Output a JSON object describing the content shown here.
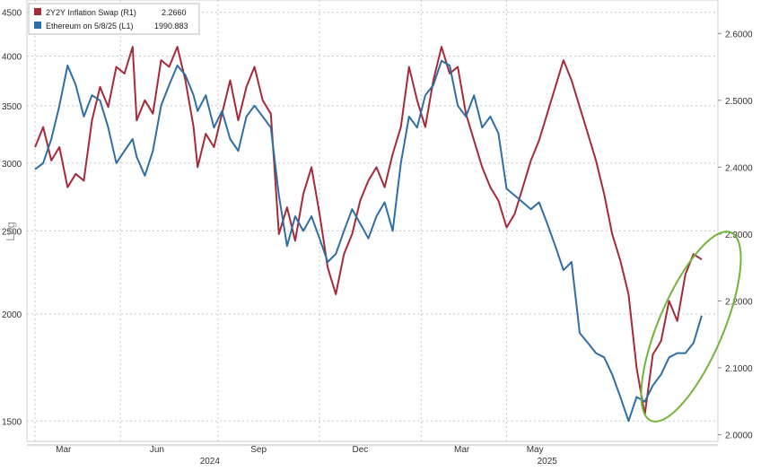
{
  "chart_data": {
    "type": "line",
    "legend": {
      "placement": "top-left",
      "entries": [
        {
          "label": "2Y2Y Inflation Swap (R1)",
          "last": "2.2660",
          "color": "#a52a3a"
        },
        {
          "label": "Ethereum on 5/8/25 (L1)",
          "last": "1990.883",
          "color": "#2f6ea6"
        }
      ]
    },
    "ylabel_left": "Log",
    "left_axis": {
      "scale": "log",
      "ticks": [
        "1500",
        "2000",
        "2500",
        "3000",
        "3500",
        "4000",
        "4500"
      ],
      "range": [
        1420,
        4650
      ]
    },
    "right_axis": {
      "scale": "linear",
      "ticks": [
        "2.0000",
        "2.1000",
        "2.2000",
        "2.3000",
        "2.4000",
        "2.5000",
        "2.6000"
      ],
      "range": [
        1.99,
        2.65
      ]
    },
    "x_ticks": [
      "Mar",
      "Jun",
      "Sep",
      "Dec",
      "Mar",
      "May"
    ],
    "x_years": [
      "2024",
      "2025"
    ],
    "grid": true,
    "annotation": "green ellipse highlighting recent rebound",
    "series": [
      {
        "name": "2Y2Y Inflation Swap (R1)",
        "axis": "right",
        "color": "#a52a3a",
        "points": [
          [
            2024.12,
            2.43
          ],
          [
            2024.14,
            2.46
          ],
          [
            2024.16,
            2.41
          ],
          [
            2024.18,
            2.43
          ],
          [
            2024.2,
            2.37
          ],
          [
            2024.22,
            2.39
          ],
          [
            2024.24,
            2.38
          ],
          [
            2024.26,
            2.47
          ],
          [
            2024.28,
            2.52
          ],
          [
            2024.3,
            2.49
          ],
          [
            2024.32,
            2.55
          ],
          [
            2024.34,
            2.54
          ],
          [
            2024.36,
            2.58
          ],
          [
            2024.37,
            2.47
          ],
          [
            2024.39,
            2.5
          ],
          [
            2024.41,
            2.48
          ],
          [
            2024.43,
            2.56
          ],
          [
            2024.45,
            2.55
          ],
          [
            2024.47,
            2.58
          ],
          [
            2024.49,
            2.53
          ],
          [
            2024.51,
            2.46
          ],
          [
            2024.52,
            2.4
          ],
          [
            2024.54,
            2.45
          ],
          [
            2024.56,
            2.43
          ],
          [
            2024.58,
            2.48
          ],
          [
            2024.6,
            2.53
          ],
          [
            2024.62,
            2.47
          ],
          [
            2024.64,
            2.52
          ],
          [
            2024.66,
            2.55
          ],
          [
            2024.68,
            2.5
          ],
          [
            2024.7,
            2.48
          ],
          [
            2024.72,
            2.3
          ],
          [
            2024.74,
            2.34
          ],
          [
            2024.76,
            2.29
          ],
          [
            2024.78,
            2.36
          ],
          [
            2024.8,
            2.4
          ],
          [
            2024.82,
            2.33
          ],
          [
            2024.84,
            2.25
          ],
          [
            2024.86,
            2.21
          ],
          [
            2024.88,
            2.27
          ],
          [
            2024.9,
            2.3
          ],
          [
            2024.92,
            2.35
          ],
          [
            2024.94,
            2.38
          ],
          [
            2024.96,
            2.4
          ],
          [
            2024.98,
            2.37
          ],
          [
            2025.0,
            2.42
          ],
          [
            2025.02,
            2.46
          ],
          [
            2025.04,
            2.55
          ],
          [
            2025.06,
            2.5
          ],
          [
            2025.08,
            2.46
          ],
          [
            2025.1,
            2.53
          ],
          [
            2025.12,
            2.58
          ],
          [
            2025.14,
            2.54
          ],
          [
            2025.16,
            2.55
          ],
          [
            2025.18,
            2.48
          ],
          [
            2025.2,
            2.44
          ],
          [
            2025.22,
            2.4
          ],
          [
            2025.24,
            2.37
          ],
          [
            2025.26,
            2.35
          ],
          [
            2025.28,
            2.31
          ],
          [
            2025.3,
            2.33
          ],
          [
            2025.32,
            2.37
          ],
          [
            2025.34,
            2.41
          ],
          [
            2025.36,
            2.44
          ],
          [
            2025.38,
            2.48
          ],
          [
            2025.4,
            2.52
          ],
          [
            2025.42,
            2.56
          ],
          [
            2025.44,
            2.53
          ],
          [
            2025.46,
            2.49
          ],
          [
            2025.48,
            2.45
          ],
          [
            2025.5,
            2.41
          ],
          [
            2025.52,
            2.36
          ],
          [
            2025.54,
            2.3
          ],
          [
            2025.56,
            2.26
          ],
          [
            2025.58,
            2.21
          ],
          [
            2025.6,
            2.1
          ],
          [
            2025.62,
            2.03
          ],
          [
            2025.64,
            2.12
          ],
          [
            2025.66,
            2.14
          ],
          [
            2025.68,
            2.2
          ],
          [
            2025.7,
            2.17
          ],
          [
            2025.72,
            2.24
          ],
          [
            2025.74,
            2.27
          ],
          [
            2025.76,
            2.262
          ]
        ]
      },
      {
        "name": "Ethereum on 5/8/25 (L1)",
        "axis": "left",
        "color": "#2f6ea6",
        "points": [
          [
            2024.12,
            2950
          ],
          [
            2024.14,
            3000
          ],
          [
            2024.16,
            3200
          ],
          [
            2024.18,
            3500
          ],
          [
            2024.2,
            3900
          ],
          [
            2024.22,
            3700
          ],
          [
            2024.24,
            3400
          ],
          [
            2024.26,
            3600
          ],
          [
            2024.28,
            3550
          ],
          [
            2024.3,
            3300
          ],
          [
            2024.32,
            3000
          ],
          [
            2024.34,
            3100
          ],
          [
            2024.36,
            3200
          ],
          [
            2024.37,
            3050
          ],
          [
            2024.39,
            2900
          ],
          [
            2024.41,
            3100
          ],
          [
            2024.43,
            3500
          ],
          [
            2024.45,
            3700
          ],
          [
            2024.47,
            3900
          ],
          [
            2024.49,
            3800
          ],
          [
            2024.51,
            3600
          ],
          [
            2024.52,
            3450
          ],
          [
            2024.54,
            3600
          ],
          [
            2024.56,
            3300
          ],
          [
            2024.58,
            3450
          ],
          [
            2024.6,
            3200
          ],
          [
            2024.62,
            3100
          ],
          [
            2024.64,
            3400
          ],
          [
            2024.66,
            3500
          ],
          [
            2024.68,
            3400
          ],
          [
            2024.7,
            3300
          ],
          [
            2024.72,
            2750
          ],
          [
            2024.74,
            2400
          ],
          [
            2024.76,
            2600
          ],
          [
            2024.78,
            2500
          ],
          [
            2024.8,
            2600
          ],
          [
            2024.82,
            2450
          ],
          [
            2024.84,
            2300
          ],
          [
            2024.86,
            2350
          ],
          [
            2024.88,
            2500
          ],
          [
            2024.9,
            2650
          ],
          [
            2024.92,
            2550
          ],
          [
            2024.94,
            2450
          ],
          [
            2024.96,
            2600
          ],
          [
            2024.98,
            2700
          ],
          [
            2025.0,
            2500
          ],
          [
            2025.02,
            3000
          ],
          [
            2025.04,
            3400
          ],
          [
            2025.06,
            3300
          ],
          [
            2025.08,
            3600
          ],
          [
            2025.1,
            3700
          ],
          [
            2025.12,
            3950
          ],
          [
            2025.14,
            3900
          ],
          [
            2025.16,
            3500
          ],
          [
            2025.18,
            3400
          ],
          [
            2025.2,
            3600
          ],
          [
            2025.22,
            3300
          ],
          [
            2025.24,
            3400
          ],
          [
            2025.26,
            3250
          ],
          [
            2025.28,
            2800
          ],
          [
            2025.3,
            2750
          ],
          [
            2025.32,
            2700
          ],
          [
            2025.34,
            2650
          ],
          [
            2025.36,
            2700
          ],
          [
            2025.38,
            2550
          ],
          [
            2025.4,
            2400
          ],
          [
            2025.42,
            2250
          ],
          [
            2025.44,
            2300
          ],
          [
            2025.46,
            1900
          ],
          [
            2025.48,
            1850
          ],
          [
            2025.5,
            1800
          ],
          [
            2025.52,
            1780
          ],
          [
            2025.54,
            1700
          ],
          [
            2025.56,
            1600
          ],
          [
            2025.58,
            1500
          ],
          [
            2025.6,
            1600
          ],
          [
            2025.62,
            1580
          ],
          [
            2025.64,
            1650
          ],
          [
            2025.66,
            1700
          ],
          [
            2025.68,
            1780
          ],
          [
            2025.7,
            1800
          ],
          [
            2025.72,
            1800
          ],
          [
            2025.74,
            1850
          ],
          [
            2025.76,
            1990.883
          ]
        ]
      }
    ]
  }
}
